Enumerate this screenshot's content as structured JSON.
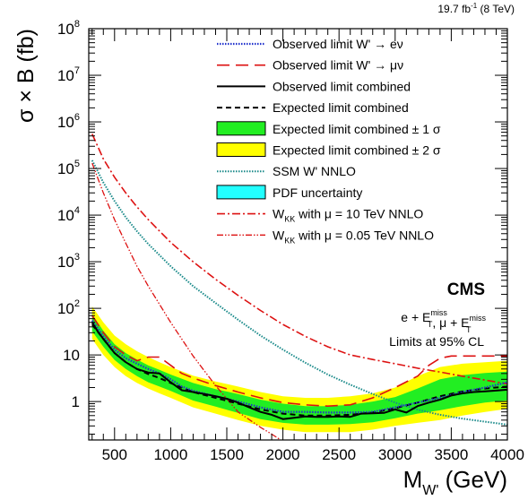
{
  "chart_data": {
    "type": "line",
    "lumi_label": {
      "lumi": "19.7 fb",
      "sup": "-1",
      "energy": " (8 TeV)"
    },
    "xlabel": {
      "main": "M",
      "sub": "W'",
      "unit": " (GeV)"
    },
    "ylabel": "σ × B (fb)",
    "xlim": [
      270,
      4000
    ],
    "ylim": [
      0.15,
      100000000
    ],
    "y_scale": "log",
    "x_ticks": [
      500,
      1000,
      1500,
      2000,
      2500,
      3000,
      3500,
      4000
    ],
    "x_tick_labels": [
      "500",
      "1000",
      "1500",
      "2000",
      "2500",
      "3000",
      "3500",
      "4000"
    ],
    "y_ticks": [
      {
        "value": 100000000,
        "base": "10",
        "exp": "8"
      },
      {
        "value": 10000000,
        "base": "10",
        "exp": "7"
      },
      {
        "value": 1000000,
        "base": "10",
        "exp": "6"
      },
      {
        "value": 100000,
        "base": "10",
        "exp": "5"
      },
      {
        "value": 10000,
        "base": "10",
        "exp": "4"
      },
      {
        "value": 1000,
        "base": "10",
        "exp": "3"
      },
      {
        "value": 100,
        "base": "10",
        "exp": "2"
      },
      {
        "value": 10,
        "base": "10",
        "exp": ""
      },
      {
        "value": 1,
        "base": "1",
        "exp": ""
      }
    ],
    "annotations": {
      "experiment": "CMS",
      "channels": "e + E_T^miss,  μ + E_T^miss",
      "channel_parts": [
        {
          "text": "e + E",
          "sup": "miss",
          "sub": "T"
        },
        {
          "text": ",  μ + E",
          "sup": "miss",
          "sub": "T"
        }
      ],
      "cl": "Limits at 95% CL"
    },
    "legend": [
      {
        "key": "obs_enu",
        "label": "Observed limit W' → eν",
        "style": "dotted-blue"
      },
      {
        "key": "obs_munu",
        "label": "Observed limit W' → μν",
        "style": "dashed-red"
      },
      {
        "key": "obs_comb",
        "label": "Observed limit combined",
        "style": "solid-black"
      },
      {
        "key": "exp_comb",
        "label": "Expected limit combined",
        "style": "dashed-black"
      },
      {
        "key": "band1",
        "label": "Expected limit combined ± 1 σ",
        "style": "box-green"
      },
      {
        "key": "band2",
        "label": "Expected limit combined ± 2 σ",
        "style": "box-yellow"
      },
      {
        "key": "ssm",
        "label": "SSM W' NNLO",
        "style": "dotted-teal"
      },
      {
        "key": "pdf",
        "label": "PDF uncertainty",
        "style": "box-cyan"
      },
      {
        "key": "wkk10",
        "label": "W_KK with μ = 10 TeV NNLO",
        "main": "W",
        "sub": "KK",
        "rest": " with μ = 10 TeV NNLO",
        "style": "dashdot-red"
      },
      {
        "key": "wkk005",
        "label": "W_KK with μ = 0.05 TeV NNLO",
        "main": "W",
        "sub": "KK",
        "rest": " with μ = 0.05 TeV NNLO",
        "style": "dashdotdot-red"
      }
    ],
    "series": {
      "band2": {
        "x": [
          300,
          400,
          500,
          600,
          700,
          800,
          900,
          1000,
          1200,
          1400,
          1600,
          1800,
          2000,
          2200,
          2400,
          2600,
          2800,
          3000,
          3200,
          3400,
          3600,
          3800,
          4000
        ],
        "low": [
          22,
          10,
          5.5,
          3.5,
          2.5,
          1.9,
          1.5,
          1.2,
          0.75,
          0.55,
          0.4,
          0.3,
          0.25,
          0.22,
          0.22,
          0.22,
          0.25,
          0.3,
          0.35,
          0.4,
          0.5,
          0.6,
          0.7
        ],
        "high": [
          110,
          50,
          26,
          17,
          12,
          9,
          7,
          5.5,
          3.6,
          2.7,
          2.1,
          1.6,
          1.3,
          1.2,
          1.2,
          1.3,
          1.5,
          2.0,
          3.5,
          5.5,
          6.5,
          7.0,
          7.5
        ]
      },
      "band1": {
        "x": [
          300,
          400,
          500,
          600,
          700,
          800,
          900,
          1000,
          1200,
          1400,
          1600,
          1800,
          2000,
          2200,
          2400,
          2600,
          2800,
          3000,
          3200,
          3400,
          3600,
          3800,
          4000
        ],
        "low": [
          32,
          15,
          7.8,
          5.0,
          3.5,
          2.6,
          2.1,
          1.7,
          1.05,
          0.78,
          0.57,
          0.42,
          0.35,
          0.32,
          0.32,
          0.33,
          0.36,
          0.44,
          0.55,
          0.65,
          0.8,
          0.95,
          1.05
        ],
        "high": [
          75,
          33,
          17,
          11,
          8,
          6,
          4.8,
          3.8,
          2.5,
          1.85,
          1.45,
          1.1,
          0.9,
          0.8,
          0.8,
          0.85,
          1.0,
          1.25,
          1.9,
          3.0,
          3.7,
          4.1,
          4.4
        ]
      },
      "obs_enu": {
        "x": [
          300,
          400,
          500,
          600,
          700,
          800,
          900,
          1000,
          1100,
          1200,
          1400,
          1600,
          1800,
          2000,
          2200,
          2400,
          2600,
          2800,
          3000,
          3200,
          3400,
          3600,
          3800,
          4000
        ],
        "y": [
          55,
          25,
          13,
          8.5,
          6.5,
          5,
          4,
          3,
          2.1,
          1.7,
          1.3,
          1.0,
          0.75,
          0.6,
          0.6,
          0.58,
          0.58,
          0.6,
          0.75,
          0.95,
          1.2,
          1.6,
          2.0,
          2.6
        ]
      },
      "obs_munu": {
        "x": [
          300,
          400,
          500,
          600,
          700,
          800,
          900,
          1000,
          1100,
          1200,
          1400,
          1600,
          1800,
          2000,
          2200,
          2400,
          2600,
          2800,
          3000,
          3200,
          3300,
          3400,
          3500,
          3600,
          3800,
          4000
        ],
        "y": [
          70,
          30,
          15,
          10,
          7.5,
          9,
          9,
          6,
          4,
          3.2,
          2.2,
          1.6,
          1.2,
          0.95,
          0.85,
          0.8,
          0.85,
          1.2,
          2.0,
          3.5,
          6,
          8.5,
          9.5,
          9.5,
          9.5,
          9.5
        ]
      },
      "obs_comb": {
        "x": [
          300,
          350,
          400,
          500,
          600,
          700,
          800,
          900,
          1000,
          1100,
          1200,
          1300,
          1400,
          1500,
          1600,
          1700,
          1800,
          1900,
          2000,
          2100,
          2200,
          2300,
          2400,
          2500,
          2600,
          2700,
          2800,
          2900,
          3000,
          3100,
          3200,
          3300,
          3400,
          3500,
          3600,
          3700,
          3800,
          3900,
          4000
        ],
        "y": [
          50,
          32,
          22,
          11,
          7,
          5,
          4.2,
          4,
          2.6,
          1.75,
          1.6,
          1.45,
          1.3,
          1.15,
          0.95,
          0.75,
          0.6,
          0.52,
          0.42,
          0.45,
          0.48,
          0.47,
          0.47,
          0.48,
          0.47,
          0.55,
          0.56,
          0.57,
          0.68,
          0.58,
          0.8,
          0.95,
          1.1,
          1.35,
          1.5,
          1.6,
          1.65,
          1.72,
          1.8
        ]
      },
      "exp_comb": {
        "x": [
          300,
          400,
          500,
          600,
          700,
          800,
          900,
          1000,
          1200,
          1400,
          1600,
          1800,
          2000,
          2200,
          2400,
          2600,
          2800,
          3000,
          3200,
          3400,
          3600,
          3800,
          4000
        ],
        "y": [
          45,
          22,
          11,
          7,
          5,
          3.9,
          3.2,
          2.5,
          1.6,
          1.2,
          0.9,
          0.68,
          0.55,
          0.5,
          0.5,
          0.52,
          0.58,
          0.72,
          0.95,
          1.3,
          1.65,
          1.9,
          2.1
        ]
      },
      "ssm": {
        "x": [
          300,
          400,
          500,
          600,
          700,
          800,
          1000,
          1200,
          1400,
          1600,
          1800,
          2000,
          2200,
          2400,
          2600,
          2800,
          3000,
          3200,
          3400,
          3600,
          3800,
          4000
        ],
        "y": [
          150000,
          50000,
          20000,
          9000,
          4500,
          2400,
          800,
          300,
          130,
          57,
          26,
          13,
          6.8,
          3.8,
          2.3,
          1.45,
          0.95,
          0.67,
          0.52,
          0.43,
          0.37,
          0.32
        ]
      },
      "wkk10": {
        "x": [
          300,
          400,
          500,
          600,
          700,
          800,
          1000,
          1200,
          1400,
          1600,
          1800,
          2000,
          2200,
          2400,
          2600,
          2800,
          3000,
          3200,
          3400,
          3600,
          3800,
          4000
        ],
        "y": [
          550000,
          160000,
          65000,
          30000,
          15000,
          8000,
          2600,
          1000,
          420,
          190,
          90,
          45,
          25,
          15,
          10,
          8,
          6.5,
          5.2,
          4.3,
          3.5,
          2.9,
          2.4
        ]
      },
      "wkk005": {
        "x": [
          300,
          400,
          500,
          600,
          700,
          800,
          1000,
          1200,
          1400,
          1600,
          1800,
          1900,
          2000
        ],
        "y": [
          130000,
          30000,
          8000,
          2500,
          800,
          300,
          50,
          9.5,
          2.2,
          0.6,
          0.28,
          0.2,
          0.14
        ]
      }
    }
  }
}
